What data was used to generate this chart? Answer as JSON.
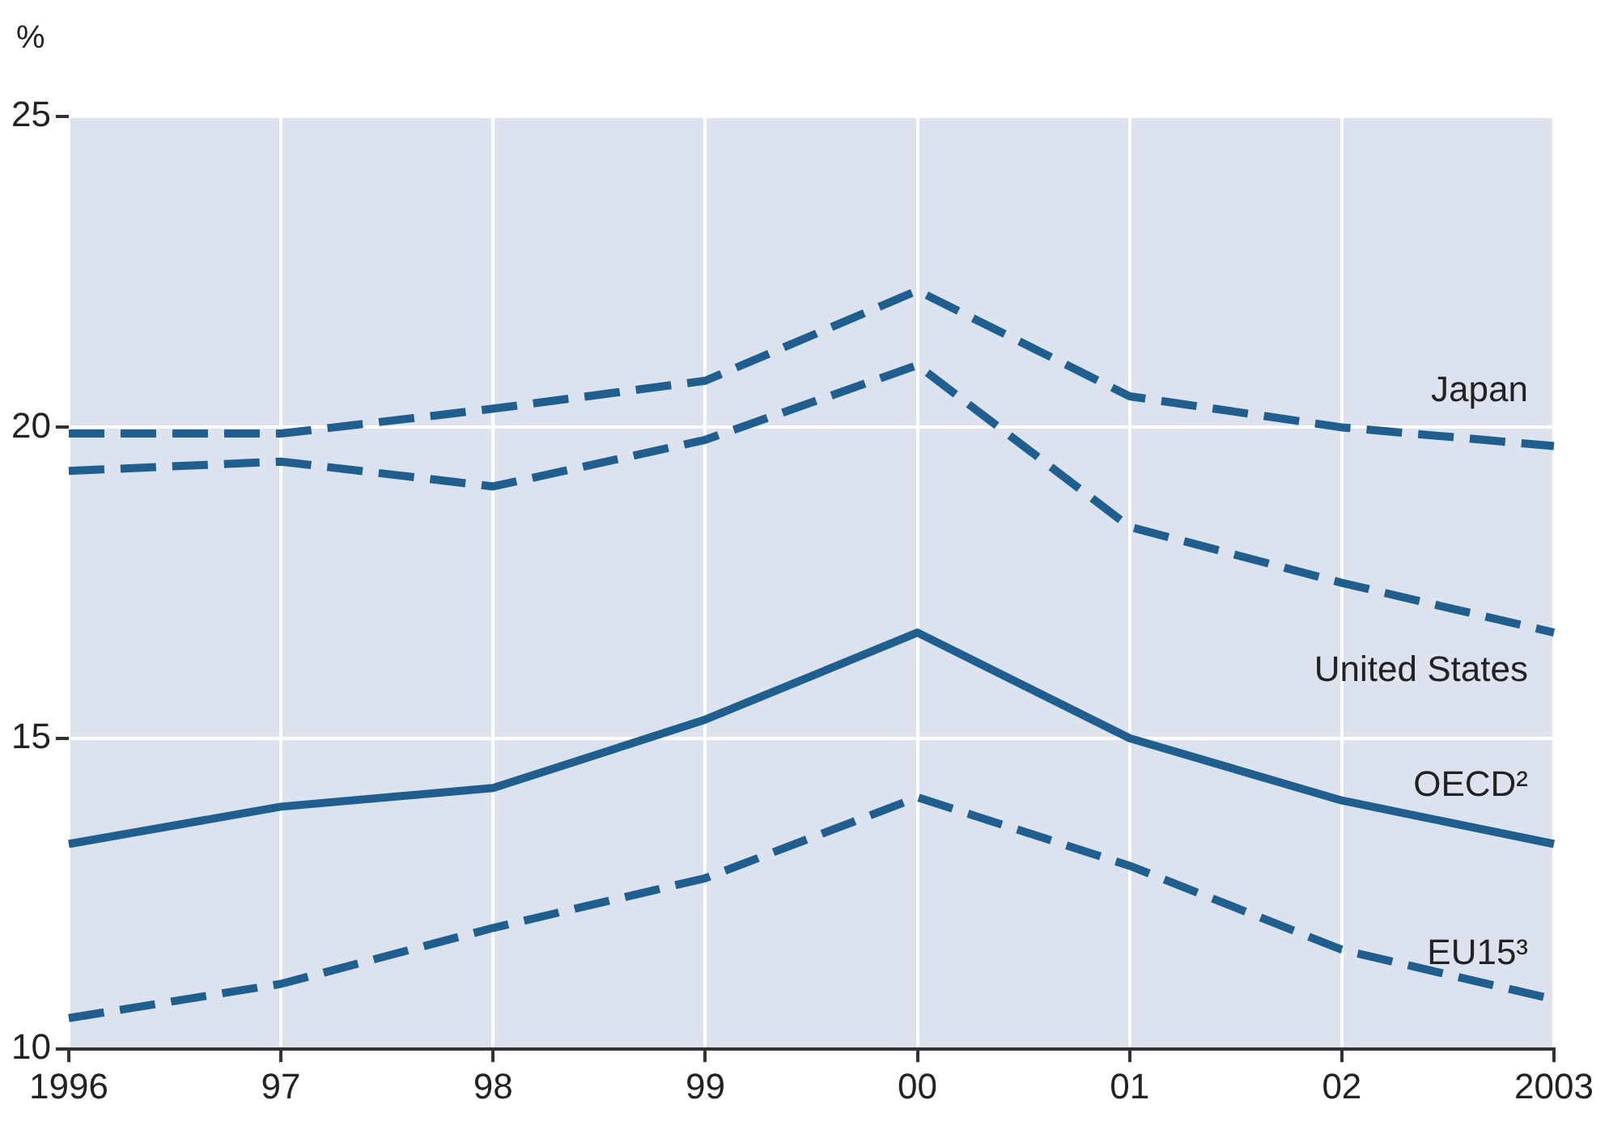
{
  "chart_data": {
    "type": "line",
    "ylabel": "%",
    "categories": [
      "1996",
      "97",
      "98",
      "99",
      "00",
      "01",
      "02",
      "2003"
    ],
    "series": [
      {
        "name": "Japan",
        "color": "#1f5f8f",
        "line_style": "dashed",
        "values": [
          19.9,
          19.9,
          20.3,
          20.75,
          22.2,
          20.5,
          20.0,
          19.7
        ]
      },
      {
        "name": "United States",
        "color": "#1f5f8f",
        "line_style": "dashed",
        "values": [
          19.3,
          19.45,
          19.05,
          19.8,
          21.0,
          18.4,
          17.5,
          16.7
        ]
      },
      {
        "name": "OECD²",
        "color": "#1f5f8f",
        "line_style": "solid",
        "values": [
          13.3,
          13.9,
          14.2,
          15.3,
          16.7,
          15.0,
          14.0,
          13.3
        ]
      },
      {
        "name": "EU15³",
        "color": "#1f5f8f",
        "line_style": "dashed",
        "values": [
          10.5,
          11.05,
          11.95,
          12.75,
          14.05,
          12.95,
          11.6,
          10.8
        ]
      }
    ],
    "ylim": [
      10,
      25
    ],
    "yticks": [
      10,
      15,
      20,
      25
    ],
    "grid": true,
    "legend": false,
    "marker": "none"
  }
}
